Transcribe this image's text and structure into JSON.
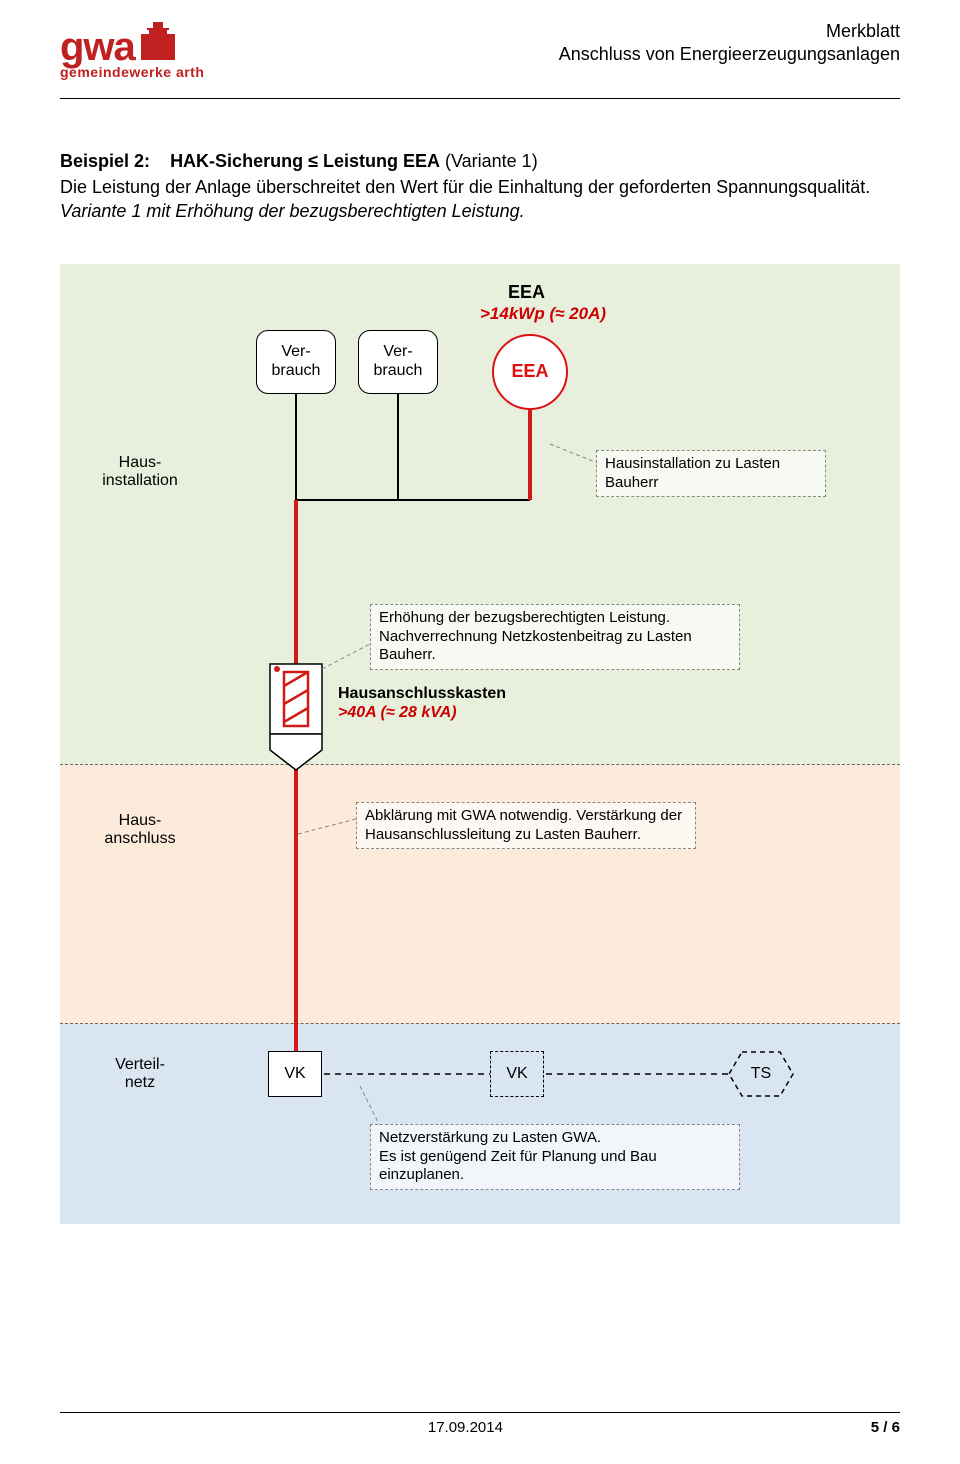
{
  "header": {
    "line1": "Merkblatt",
    "line2": "Anschluss von Energieerzeugungsanlagen",
    "logo_main": "gwa",
    "logo_sub": "gemeindewerke arth"
  },
  "intro": {
    "label": "Beispiel 2:",
    "title": "HAK-Sicherung ≤ Leistung EEA",
    "variant": "(Variante 1)",
    "body1": "Die Leistung der Anlage überschreitet den Wert für die Einhaltung der geforderten Spannungsqualität.",
    "body2": "Variante 1 mit Erhöhung der bezugsberechtigten Leistung."
  },
  "diagram": {
    "zones": {
      "hausinstallation": "Haus-\ninstallation",
      "hausanschluss": "Haus-\nanschluss",
      "verteilnetz": "Verteil-\nnetz"
    },
    "verbrauch1": "Ver-\nbrauch",
    "verbrauch2": "Ver-\nbrauch",
    "eea_title": "EEA",
    "eea_sub": ">14kWp (≈ 20A)",
    "eea_circle": "EEA",
    "note_hausinst": "Hausinstallation zu Lasten Bauherr",
    "note_erhoehung": "Erhöhung der bezugsberechtigten Leistung. Nachverrechnung Netzkostenbeitrag zu Lasten Bauherr.",
    "hak_label_line1": "Hausanschlusskasten",
    "hak_label_line2": ">40A (≈ 28 kVA)",
    "note_abkl": "Abklärung mit GWA notwendig. Verstärkung der Hausanschlussleitung zu Lasten Bauherr.",
    "vk1": "VK",
    "vk2": "VK",
    "ts": "TS",
    "note_netz": "Netzverstärkung zu Lasten GWA.\nEs ist genügend Zeit für Planung und Bau einzuplanen."
  },
  "footer": {
    "date": "17.09.2014",
    "page": "5 / 6"
  },
  "colors": {
    "red": "#d11a1a",
    "green_zone": "#e8f0dd",
    "peach_zone": "#fceada",
    "blue_zone": "#d9e6f2",
    "logo_red": "#c02020"
  }
}
